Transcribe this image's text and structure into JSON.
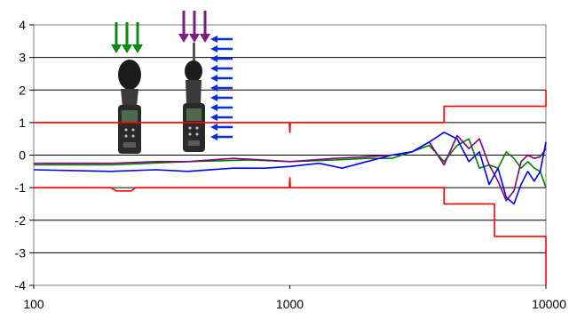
{
  "chart_data": {
    "type": "line",
    "title": "",
    "xlabel": "",
    "ylabel": "",
    "x_scale": "log",
    "xlim": [
      100,
      10000
    ],
    "ylim": [
      -4,
      4
    ],
    "x_ticks": [
      100,
      1000,
      10000
    ],
    "x_tick_labels": [
      "100",
      "1000",
      "10000"
    ],
    "y_ticks": [
      4,
      3,
      2,
      1,
      0,
      -1,
      -2,
      -3,
      -4
    ],
    "y_tick_labels": [
      "4",
      "3",
      "2",
      "1",
      "0",
      "-1",
      "-2",
      "-3",
      "-4"
    ],
    "grid": "horizontal",
    "legend": "none",
    "series": [
      {
        "color": "#ff0000",
        "x": [
          100,
          995,
          1000,
          1005,
          4000,
          4000,
          10000,
          10000
        ],
        "y": [
          1,
          1,
          0.7,
          1,
          1,
          1.5,
          1.5,
          2
        ]
      },
      {
        "color": "#ff0000",
        "x": [
          100,
          200,
          210,
          240,
          250,
          995,
          1000,
          1005,
          4000,
          4000,
          6300,
          6300,
          10000,
          10000
        ],
        "y": [
          -1,
          -1,
          -1.1,
          -1.1,
          -1,
          -1,
          -0.7,
          -1,
          -1,
          -1.5,
          -1.5,
          -2.5,
          -2.5,
          -4
        ]
      },
      {
        "color": "#008000",
        "x": [
          100,
          200,
          400,
          700,
          1000,
          1500,
          2000,
          2500,
          3000,
          3500,
          4000,
          4500,
          5000,
          5500,
          6000,
          6500,
          7000,
          7500,
          8000,
          8500,
          9000,
          9500,
          10000
        ],
        "y": [
          -0.3,
          -0.3,
          -0.2,
          -0.15,
          -0.2,
          -0.15,
          -0.1,
          -0.1,
          0.1,
          0.3,
          -0.2,
          0.3,
          0.5,
          -0.4,
          -0.3,
          -0.4,
          0.1,
          -0.1,
          -0.4,
          -0.2,
          -0.4,
          -0.5,
          -1
        ]
      },
      {
        "color": "#800080",
        "x": [
          100,
          200,
          300,
          400,
          600,
          800,
          1000,
          1500,
          2000,
          2500,
          3000,
          3500,
          4000,
          4500,
          5000,
          5500,
          6000,
          6500,
          7000,
          7500,
          8000,
          8500,
          9000,
          9500,
          10000
        ],
        "y": [
          -0.25,
          -0.25,
          -0.2,
          -0.2,
          -0.1,
          -0.15,
          -0.2,
          -0.1,
          -0.05,
          0,
          0.1,
          0.4,
          -0.3,
          0.6,
          0.2,
          0.5,
          -0.3,
          -0.8,
          -1.4,
          -1.1,
          -0.2,
          0,
          -0.1,
          -0.05,
          0.2
        ]
      },
      {
        "color": "#0000ff",
        "x": [
          100,
          200,
          300,
          400,
          600,
          800,
          1000,
          1300,
          1600,
          2000,
          2500,
          3000,
          3500,
          4000,
          4500,
          5000,
          5500,
          6000,
          6500,
          7000,
          7500,
          8000,
          8500,
          9000,
          9500,
          10000
        ],
        "y": [
          -0.45,
          -0.5,
          -0.45,
          -0.5,
          -0.4,
          -0.4,
          -0.35,
          -0.25,
          -0.4,
          -0.2,
          0,
          0.1,
          0.4,
          0.7,
          0.5,
          -0.2,
          0.1,
          -0.9,
          -0.4,
          -1.3,
          -1.5,
          -0.9,
          -0.5,
          -0.8,
          -0.5,
          0.4
        ]
      }
    ]
  },
  "illustration": {
    "arrow_colors": {
      "green": "#0a8a0a",
      "purple": "#7a1f7f",
      "blue": "#0a2de0"
    },
    "icons": [
      "green-down-arrow-icon",
      "purple-down-arrow-icon",
      "blue-left-arrow-icon",
      "sound-level-meter-icon"
    ]
  }
}
